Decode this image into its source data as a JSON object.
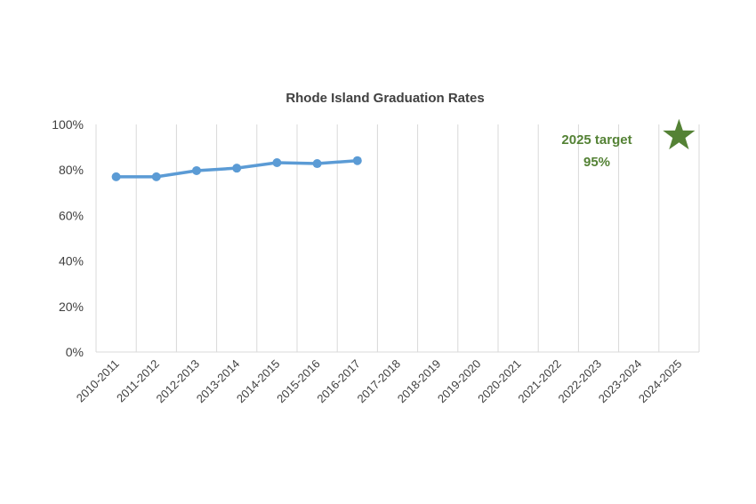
{
  "chart_data": {
    "type": "line",
    "title": "Rhode Island Graduation Rates",
    "xlabel": "",
    "ylabel": "",
    "categories": [
      "2010-2011",
      "2011-2012",
      "2012-2013",
      "2013-2014",
      "2014-2015",
      "2015-2016",
      "2016-2017",
      "2017-2018",
      "2018-2019",
      "2019-2020",
      "2020-2021",
      "2021-2022",
      "2022-2023",
      "2023-2024",
      "2024-2025"
    ],
    "yticks": [
      "0%",
      "20%",
      "40%",
      "60%",
      "80%",
      "100%"
    ],
    "ylim": [
      0,
      100
    ],
    "grid": "vertical",
    "series": [
      {
        "values": [
          77,
          77,
          79.7,
          80.8,
          83.2,
          82.8,
          84.1,
          null,
          null,
          null,
          null,
          null,
          null,
          null,
          null
        ]
      }
    ],
    "target": {
      "category": "2024-2025",
      "value": 95,
      "label_line1": "2025 target",
      "label_line2": "95%"
    },
    "colors": {
      "series": "#5B9BD5",
      "target": "#548235",
      "grid": "#d9d9d9",
      "text": "#404040"
    }
  }
}
